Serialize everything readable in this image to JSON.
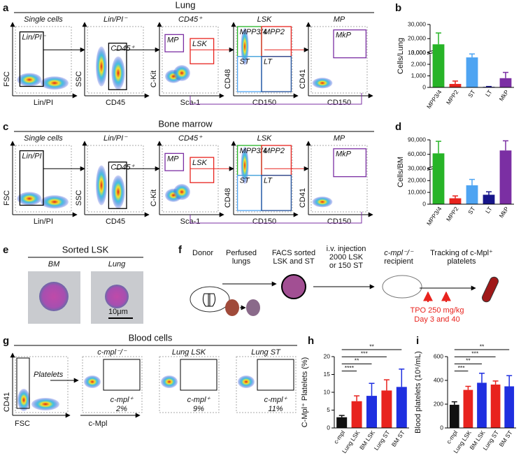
{
  "panel_letters": [
    "a",
    "b",
    "c",
    "d",
    "e",
    "f",
    "g",
    "h",
    "i"
  ],
  "lung": {
    "title": "Lung",
    "plots": [
      {
        "title": "Single cells",
        "x": "Lin/PI",
        "y": "FSC",
        "gates": [
          "Lin/PI⁻"
        ]
      },
      {
        "title": "Lin/PI⁻",
        "x": "CD45",
        "y": "SSC",
        "gates": [
          "CD45⁺"
        ]
      },
      {
        "title": "CD45⁺",
        "x": "Sca-1",
        "y": "C-Kit",
        "gates": [
          "MP",
          "LSK"
        ]
      },
      {
        "title": "LSK",
        "x": "CD150",
        "y": "CD48",
        "gates": [
          "MPP3/4",
          "MPP2",
          "ST",
          "LT"
        ]
      },
      {
        "title": "MP",
        "x": "CD150",
        "y": "CD41",
        "gates": [
          "MkP"
        ]
      }
    ]
  },
  "bone_marrow": {
    "title": "Bone marrow",
    "plots": [
      {
        "title": "Single cells",
        "x": "Lin/PI",
        "y": "FSC",
        "gates": [
          "Lin/PI"
        ]
      },
      {
        "title": "Lin/PI⁻",
        "x": "CD45",
        "y": "SSC",
        "gates": [
          "CD45⁺"
        ]
      },
      {
        "title": "CD45⁺",
        "x": "Sca-1",
        "y": "C-Kit",
        "gates": [
          "MP",
          "LSK"
        ]
      },
      {
        "title": "LSK",
        "x": "CD150",
        "y": "CD48",
        "gates": [
          "MPP3/4",
          "MPP2",
          "ST",
          "LT"
        ]
      },
      {
        "title": "MP",
        "x": "CD150",
        "y": "CD41",
        "gates": [
          "MkP"
        ]
      }
    ]
  },
  "sorted_lsk": {
    "title": "Sorted LSK",
    "labels": [
      "BM",
      "Lung"
    ],
    "scale": "10μm"
  },
  "schematic": {
    "steps": [
      [
        "Donor"
      ],
      [
        "Perfused",
        "lungs"
      ],
      [
        "FACS sorted",
        "LSK and ST"
      ],
      [
        "i.v. injection",
        "2000 LSK",
        "or 150 ST"
      ],
      [
        "c-mpl⁻/⁻",
        "recipient"
      ],
      [
        "Tracking of c-Mpl⁺",
        "platelets"
      ]
    ],
    "treatment": [
      "TPO 250 mg/kg",
      "Day 3 and 40"
    ]
  },
  "blood_cells": {
    "title": "Blood cells",
    "first": {
      "x": "FSC",
      "y": "CD41",
      "gate": "Platelets"
    },
    "x": "c-Mpl",
    "plots": [
      {
        "title": "c-mpl⁻/⁻",
        "gate": "c-mpl⁺",
        "percent": "2%"
      },
      {
        "title": "Lung LSK",
        "gate": "c-mpl⁺",
        "percent": "9%"
      },
      {
        "title": "Lung ST",
        "gate": "c-mpl⁺",
        "percent": "11%"
      }
    ]
  },
  "chart_data": [
    {
      "type": "bar",
      "y_label": "Cells/Lung",
      "categories": [
        "MPP3/4",
        "MPP2",
        "ST",
        "LT",
        "MkP"
      ],
      "values": [
        16000,
        300,
        2600,
        50,
        800
      ],
      "errors": [
        8000,
        250,
        300,
        30,
        500
      ],
      "colors": [
        "#27b427",
        "#e8231e",
        "#4ea4f2",
        "#17168a",
        "#7b2fa3"
      ],
      "ylim": [
        0,
        30000
      ],
      "ysegments": [
        [
          0,
          3000
        ],
        [
          10000,
          30000
        ]
      ],
      "yticks": [
        0,
        {
          "value": 1000,
          "label": "1,000"
        },
        {
          "value": 2000,
          "label": "2,000"
        },
        {
          "value": 3000,
          "label": "3,000"
        },
        {
          "value": 10000,
          "label": "10,000"
        },
        {
          "value": 20000,
          "label": "20,000"
        },
        {
          "value": 30000,
          "label": "30,000"
        }
      ]
    },
    {
      "type": "bar",
      "y_label": "Cells/BM",
      "categories": [
        "MPP3/4",
        "MPP2",
        "ST",
        "LT",
        "MkP"
      ],
      "values": [
        62000,
        5000,
        16000,
        8000,
        68000
      ],
      "errors": [
        25000,
        2000,
        5000,
        2500,
        20000
      ],
      "colors": [
        "#27b427",
        "#e8231e",
        "#4ea4f2",
        "#17168a",
        "#7b2fa3"
      ],
      "ylim": [
        0,
        90000
      ],
      "ysegments": [
        [
          0,
          30000
        ],
        [
          30000,
          90000
        ]
      ],
      "yticks": [
        0,
        {
          "value": 10000,
          "label": "10,000"
        },
        {
          "value": 20000,
          "label": "20,000"
        },
        {
          "value": 30000,
          "label": "30,000"
        },
        {
          "value": 60000,
          "label": "60,000"
        },
        {
          "value": 90000,
          "label": "90,000"
        }
      ]
    },
    {
      "type": "bar",
      "y_label": "C-Mpl⁺ Platelets (%)",
      "categories": [
        "c-mpl",
        "Lung LSK",
        "BM LSK",
        "Lung ST",
        "BM ST"
      ],
      "values": [
        3,
        7.5,
        9,
        10.5,
        11.5
      ],
      "errors": [
        0.5,
        1.5,
        3.5,
        3,
        5
      ],
      "colors": [
        "#111111",
        "#e8231e",
        "#1f2fe0",
        "#e8231e",
        "#1f2fe0"
      ],
      "ylim": [
        0,
        20
      ],
      "yticks": [
        0,
        5,
        10,
        15,
        20
      ],
      "significance": [
        "****",
        "**",
        "***",
        "**"
      ]
    },
    {
      "type": "bar",
      "y_label": "Blood platelets (10⁶/mL)",
      "categories": [
        "c-mpl",
        "Lung LSK",
        "BM LSK",
        "Lung ST",
        "BM ST"
      ],
      "values": [
        195,
        320,
        380,
        365,
        350
      ],
      "errors": [
        25,
        30,
        80,
        30,
        90
      ],
      "colors": [
        "#111111",
        "#e8231e",
        "#1f2fe0",
        "#e8231e",
        "#1f2fe0"
      ],
      "ylim": [
        0,
        600
      ],
      "yticks": [
        0,
        200,
        400,
        600
      ],
      "significance": [
        "***",
        "**",
        "***",
        "**"
      ]
    }
  ]
}
